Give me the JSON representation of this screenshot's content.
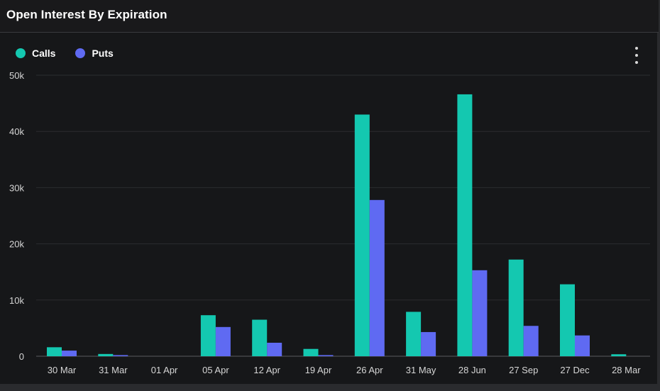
{
  "title": "Open Interest By Expiration",
  "menu_icon": "more-vertical-icon",
  "colors": {
    "calls": "#14c8b0",
    "puts": "#5f6af2",
    "background": "#161719",
    "grid": "#2b2c2f"
  },
  "chart_data": {
    "type": "bar",
    "title": "Open Interest By Expiration",
    "categories": [
      "30 Mar",
      "31 Mar",
      "01 Apr",
      "05 Apr",
      "12 Apr",
      "19 Apr",
      "26 Apr",
      "31 May",
      "28 Jun",
      "27 Sep",
      "27 Dec",
      "28 Mar"
    ],
    "series": [
      {
        "name": "Calls",
        "color": "#14c8b0",
        "values": [
          1600,
          400,
          0,
          7300,
          6500,
          1300,
          43000,
          7900,
          46600,
          17200,
          12800,
          350
        ]
      },
      {
        "name": "Puts",
        "color": "#5f6af2",
        "values": [
          1000,
          200,
          0,
          5200,
          2400,
          200,
          27800,
          4300,
          15300,
          5400,
          3700,
          0
        ]
      }
    ],
    "ylim": [
      0,
      50000
    ],
    "yticks": [
      0,
      10000,
      20000,
      30000,
      40000,
      50000
    ],
    "ytick_labels": [
      "0",
      "10k",
      "20k",
      "30k",
      "40k",
      "50k"
    ],
    "xlabel": "",
    "ylabel": "",
    "grid": true,
    "legend_position": "top-left"
  }
}
